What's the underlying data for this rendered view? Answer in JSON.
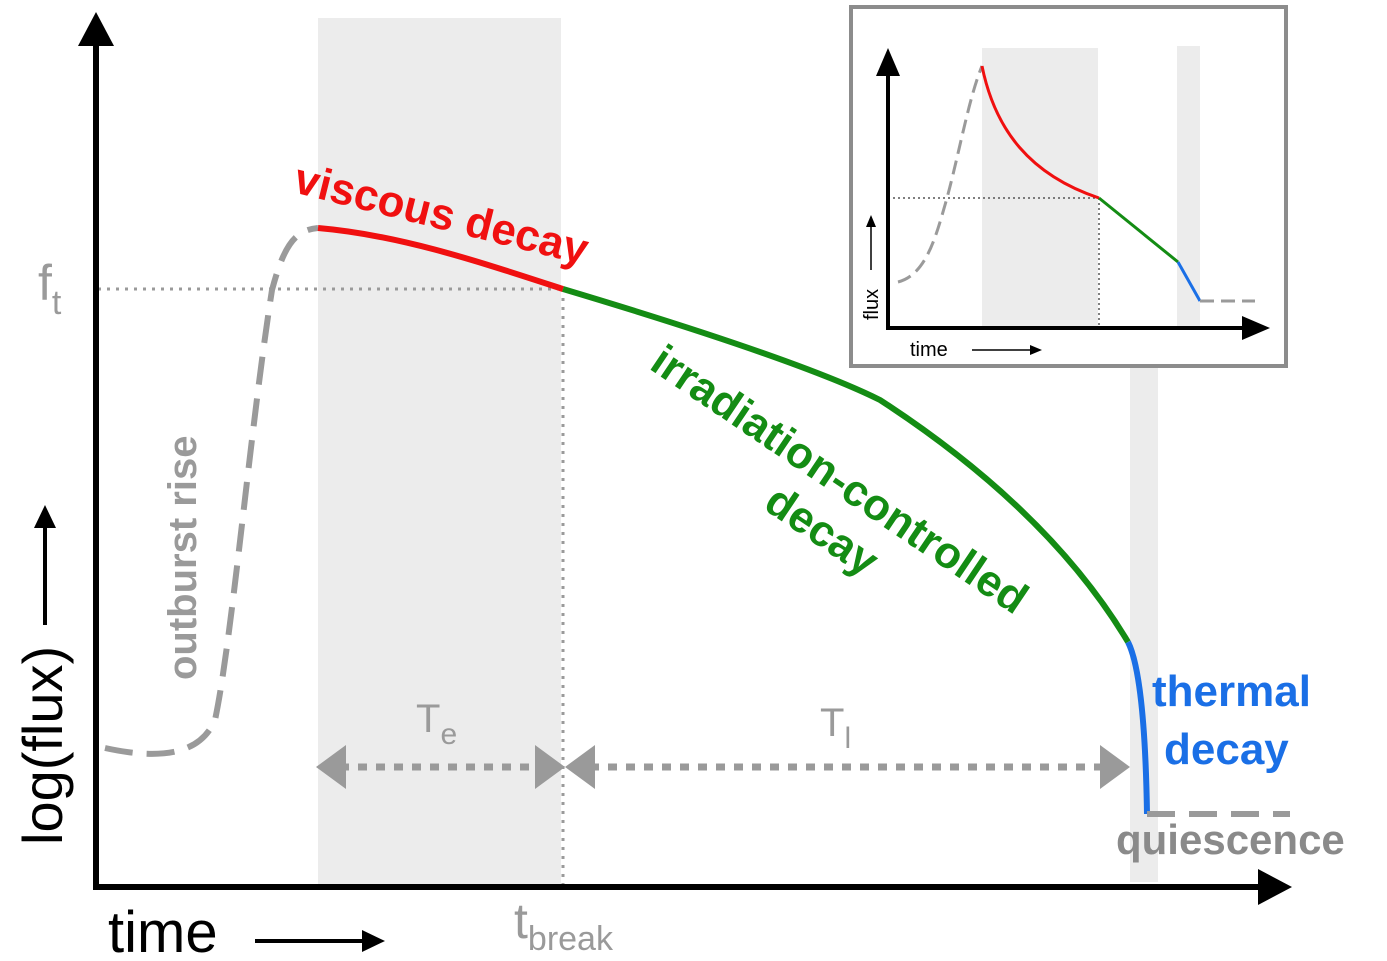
{
  "colors": {
    "axis": "#000000",
    "shade": "#ececec",
    "gray": "#9a9a9a",
    "dark_gray": "#8a8a8a",
    "red": "#f01010",
    "green": "#148c14",
    "blue": "#1a6fe6",
    "inset_border": "#8c8c8c"
  },
  "main": {
    "xlabel": "time",
    "ylabel": "log(flux)",
    "ft_main": "f",
    "ft_sub": "t",
    "tbreak_main": "t",
    "tbreak_sub": "break",
    "te_main": "T",
    "te_sub": "e",
    "tl_main": "T",
    "tl_sub": "l"
  },
  "phases": {
    "rise": "outburst rise",
    "viscous": "viscous decay",
    "irradiation_line1": "irradiation-controlled",
    "irradiation_line2": "decay",
    "thermal_line1": "thermal",
    "thermal_line2": "decay",
    "quiescence": "quiescence"
  },
  "inset": {
    "xlabel": "time",
    "ylabel": "flux"
  }
}
